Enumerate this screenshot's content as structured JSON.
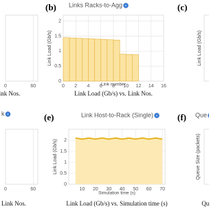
{
  "chart_data": [
    {
      "type": "area",
      "xlim": [
        0,
        70
      ],
      "xticks": [
        0,
        60
      ],
      "caption": "ink Nos."
    },
    {
      "type": "bar",
      "panel": "(b)",
      "title": "Links Racks-to-Agg",
      "ylabel": "Link Load (Gb/s)",
      "xlabel": "Link number",
      "caption": "Link Load (Gb/s) vs. Link Nos.",
      "x": [
        0,
        1,
        2,
        3,
        4,
        5,
        6,
        7,
        8,
        9,
        10,
        11
      ],
      "values": [
        1.45,
        1.44,
        1.43,
        1.42,
        1.41,
        1.4,
        1.39,
        1.38,
        1.37,
        0.9,
        0.89,
        0.88
      ],
      "color": "#fbe3a2",
      "edge": "#e6b43c",
      "xlim": [
        0,
        16
      ],
      "xticks": [
        0,
        2,
        4,
        6,
        8,
        10,
        12,
        14,
        16
      ],
      "ylim": [
        0,
        2.2
      ],
      "yticks": [
        0,
        0.5,
        1,
        1.5,
        2
      ],
      "grid": true
    },
    {
      "type": "partial",
      "panel": "(c)",
      "ylabel": "Link Load (Gb/s)"
    },
    {
      "type": "area",
      "title": "k",
      "xlim": [
        0,
        70
      ],
      "xticks": [
        0,
        60
      ],
      "caption": "Link Nos."
    },
    {
      "type": "line",
      "panel": "(e)",
      "title": "Link Host-to-Rack (Single)",
      "ylabel": "Link Load (Gb/s)",
      "xlabel": "Simulation time (s)",
      "caption": "Link Load (Gb/s) vs. Simulation time (s)",
      "x": [
        5,
        10,
        15,
        20,
        25,
        30,
        35,
        40,
        45,
        50,
        55,
        60,
        65,
        70
      ],
      "values": [
        2.1,
        2.05,
        2.1,
        2.05,
        2.1,
        2.05,
        2.1,
        2.05,
        2.1,
        2.05,
        2.1,
        2.05,
        2.1,
        2.05
      ],
      "color": "#e6b422",
      "fill": "#fde9b3",
      "xlim": [
        0,
        72
      ],
      "xticks": [
        10,
        20,
        30,
        40,
        50,
        60,
        70
      ],
      "ylim": [
        0,
        2.5
      ],
      "yticks": [
        0,
        0.5,
        1,
        1.5,
        2
      ],
      "grid": true
    },
    {
      "type": "partial",
      "panel": "(f)",
      "title": "Que",
      "ylabel": "Queue Size (packets)",
      "caption": "Queue Size"
    }
  ]
}
